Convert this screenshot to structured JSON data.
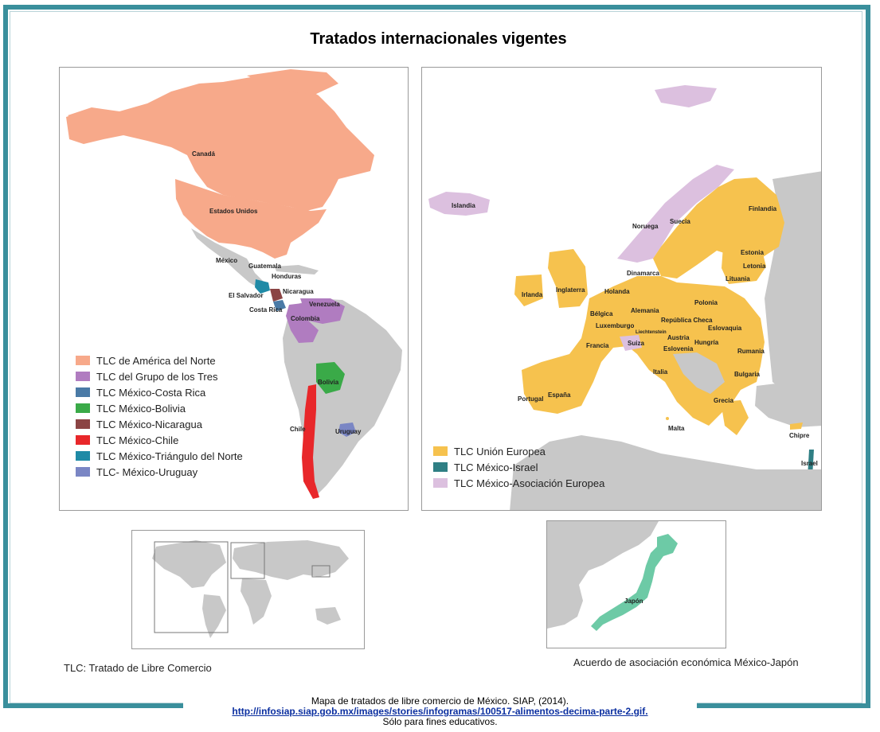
{
  "title": "Tratados internacionales vigentes",
  "americas": {
    "labels": {
      "canada": "Canadá",
      "usa": "Estados Unidos",
      "mexico": "México",
      "guatemala": "Guatemala",
      "honduras": "Honduras",
      "nicaragua": "Nicaragua",
      "el_salvador": "El Salvador",
      "costa_rica": "Costa Rica",
      "venezuela": "Venezuela",
      "colombia": "Colombia",
      "bolivia": "Bolivia",
      "chile": "Chile",
      "uruguay": "Uruguay"
    },
    "legend": [
      {
        "label": "TLC de América del Norte",
        "color": "#f7a98a"
      },
      {
        "label": "TLC del Grupo de los Tres",
        "color": "#b07cc0"
      },
      {
        "label": "TLC México-Costa Rica",
        "color": "#4a7aa6"
      },
      {
        "label": "TLC México-Bolivia",
        "color": "#3aaa48"
      },
      {
        "label": "TLC México-Nicaragua",
        "color": "#8b4444"
      },
      {
        "label": "TLC México-Chile",
        "color": "#e8272a"
      },
      {
        "label": "TLC México-Triángulo del Norte",
        "color": "#1f8aa6"
      },
      {
        "label": "TLC- México-Uruguay",
        "color": "#7a86c4"
      }
    ]
  },
  "europe": {
    "labels": {
      "islandia": "Islandia",
      "noruega": "Noruega",
      "suecia": "Suecia",
      "finlandia": "Finlandia",
      "estonia": "Estonia",
      "letonia": "Letonia",
      "lituania": "Lituania",
      "dinamarca": "Dinamarca",
      "irlanda": "Irlanda",
      "inglaterra": "Inglaterra",
      "holanda": "Holanda",
      "belgica": "Bélgica",
      "alemania": "Alemania",
      "polonia": "Polonia",
      "luxemburgo": "Luxemburgo",
      "republica_checa": "República Checa",
      "liechtenstein": "Liechtenstein",
      "eslovaquia": "Eslovaquia",
      "francia": "Francia",
      "suiza": "Suiza",
      "austria": "Austria",
      "hungria": "Hungría",
      "eslovenia": "Eslovenia",
      "rumania": "Rumania",
      "italia": "Italia",
      "bulgaria": "Bulgaria",
      "portugal": "Portugal",
      "espana": "España",
      "grecia": "Grecia",
      "malta": "Malta",
      "chipre": "Chipre",
      "israel": "Israel"
    },
    "legend": [
      {
        "label": "TLC Unión Europea",
        "color": "#f6c24e"
      },
      {
        "label": "TLC México-Israel",
        "color": "#2f7f84"
      },
      {
        "label": "TLC México-Asociación Europea",
        "color": "#dcc0df"
      }
    ]
  },
  "japan": {
    "label": "Japón",
    "color": "#6dcaa6",
    "caption": "Acuerdo de asociación económica México-Japón"
  },
  "colors": {
    "frame": "#3a8f9c",
    "land": "#c8c8c8"
  },
  "footnote": "TLC: Tratado de Libre Comercio",
  "source": {
    "line1": "Mapa de tratados de libre comercio de México. SIAP,  (2014).",
    "url": "http://infosiap.siap.gob.mx/images/stories/infogramas/100517-alimentos-decima-parte-2.gif.",
    "line3": "Sólo para fines educativos."
  }
}
